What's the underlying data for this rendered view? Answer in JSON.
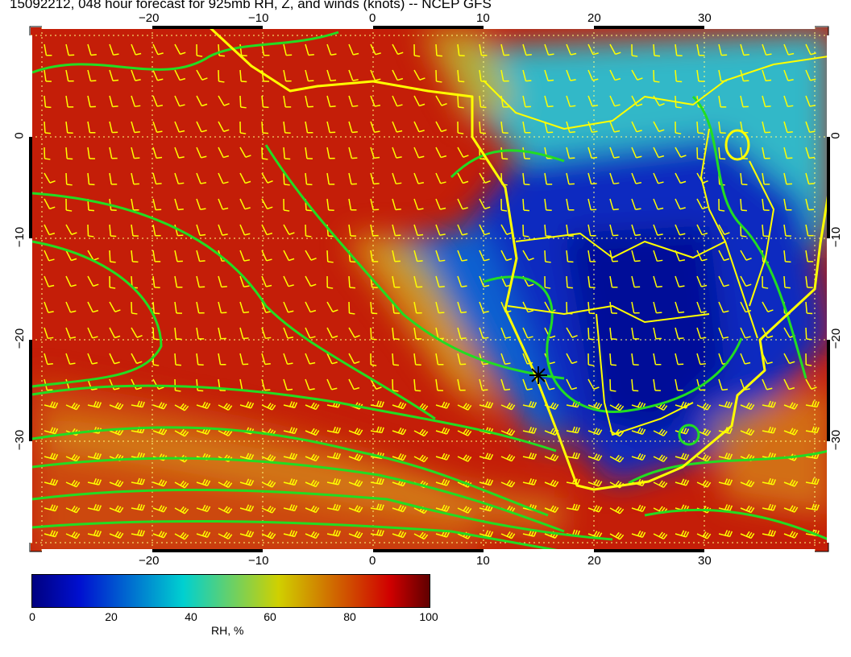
{
  "title": "15092212, 048 hour forecast for 925mb RH, Z, and winds (knots) -- NCEP GFS",
  "map": {
    "lon_ticks": [
      "−20",
      "−10",
      "0",
      "10",
      "20",
      "30"
    ],
    "lat_ticks": [
      "0",
      "−10",
      "−20",
      "−30"
    ],
    "lon_range": [
      -31,
      41
    ],
    "lat_range": [
      -41,
      11
    ],
    "coastline_color": "#ffff00",
    "contour_color": "#22dd22",
    "marker": "star-marker"
  },
  "colorbar": {
    "label": "RH, %",
    "ticks": [
      "0",
      "20",
      "40",
      "60",
      "80",
      "100"
    ],
    "range": [
      0,
      100
    ],
    "colors": [
      "#000080",
      "#0010d0",
      "#00d0d0",
      "#d0d000",
      "#d00000",
      "#600000"
    ]
  }
}
